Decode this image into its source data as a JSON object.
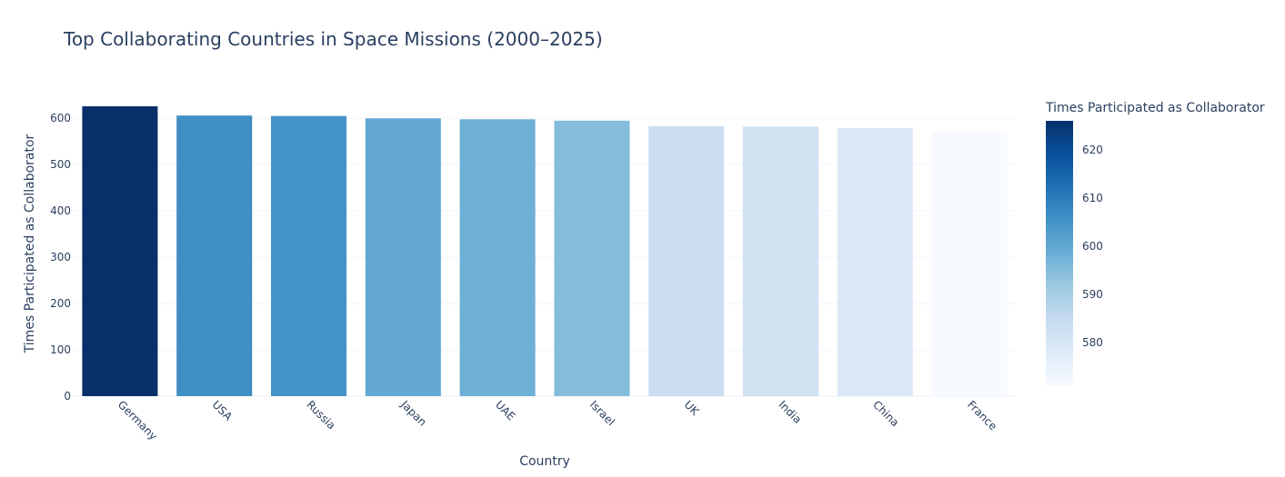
{
  "chart_data": {
    "type": "bar",
    "title": "Top Collaborating Countries in Space Missions (2000–2025)",
    "xlabel": "Country",
    "ylabel": "Times Participated as Collaborator",
    "categories": [
      "Germany",
      "USA",
      "Russia",
      "Japan",
      "UAE",
      "Israel",
      "UK",
      "India",
      "China",
      "France"
    ],
    "values": [
      626,
      606,
      605,
      600,
      598,
      595,
      583,
      582,
      579,
      571
    ],
    "ylim": [
      0,
      626
    ],
    "yticks": [
      0,
      100,
      200,
      300,
      400,
      500,
      600
    ],
    "grid": true,
    "colorscale": "Blues",
    "colorbar": {
      "title": "Times Participated as Collaborator",
      "range": [
        571,
        626
      ],
      "ticks": [
        580,
        590,
        600,
        610,
        620
      ]
    }
  }
}
